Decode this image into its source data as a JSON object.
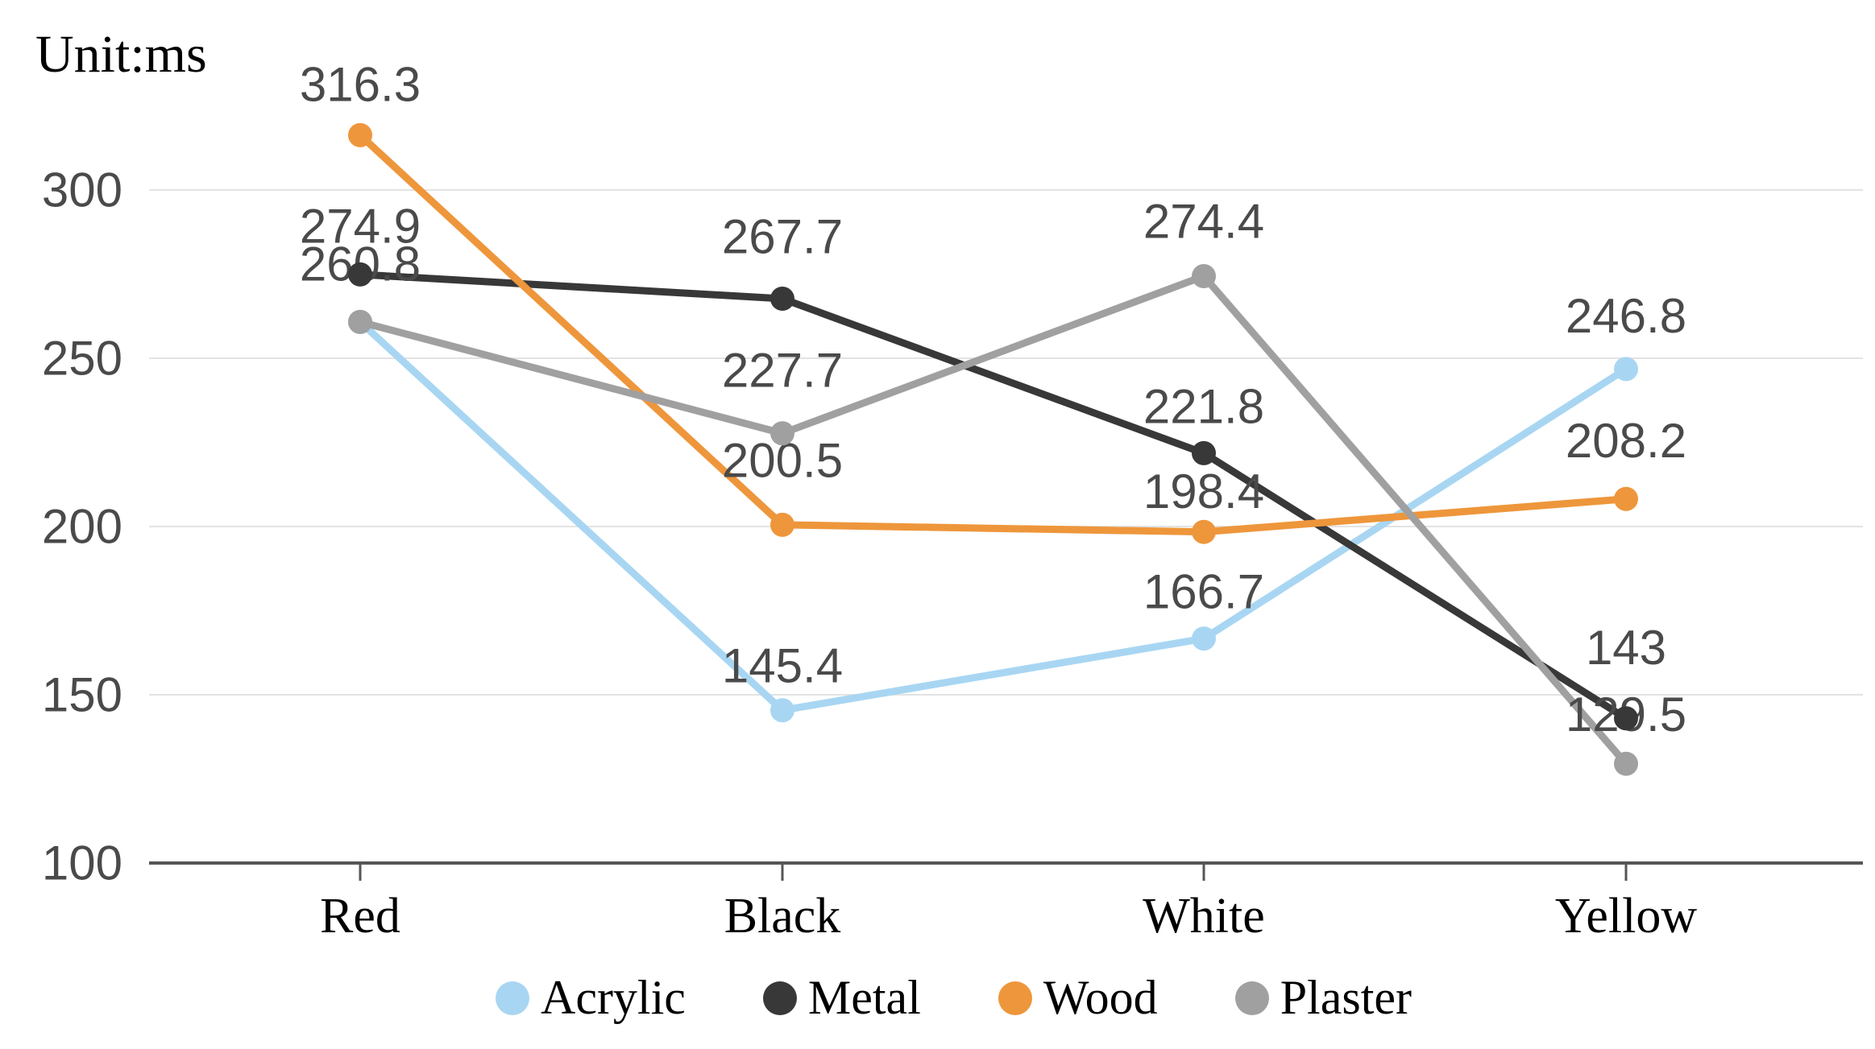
{
  "chart_data": {
    "type": "line",
    "unit_label": "Unit:ms",
    "categories": [
      "Red",
      "Black",
      "White",
      "Yellow"
    ],
    "y_ticks": [
      100,
      150,
      200,
      250,
      300
    ],
    "ylim": [
      100,
      300
    ],
    "grid": "horizontal-only",
    "legend_position": "bottom-center",
    "style": {
      "grid_color": "#e3e3e3",
      "axis_color": "#565656",
      "tick_label_color": "#4a4a4a",
      "data_label_color": "#4a4a4a",
      "category_label_color": "#000000",
      "background": "#ffffff"
    },
    "series": [
      {
        "name": "Acrylic",
        "color": "#a8d6f2",
        "values": [
          260.8,
          145.4,
          166.7,
          246.8
        ],
        "labels": [
          "",
          "145.4",
          "166.7",
          "246.8"
        ],
        "label_dy": [
          0,
          -55,
          -58,
          -66
        ]
      },
      {
        "name": "Metal",
        "color": "#383838",
        "values": [
          274.9,
          267.7,
          221.8,
          143
        ],
        "labels": [
          "274.9",
          "267.7",
          "221.8",
          "143"
        ],
        "label_dy": [
          -60,
          -77,
          -58,
          -88
        ]
      },
      {
        "name": "Wood",
        "color": "#ee963b",
        "values": [
          316.3,
          200.5,
          198.4,
          208.2
        ],
        "labels": [
          "316.3",
          "200.5",
          "198.4",
          "208.2"
        ],
        "label_dy": [
          -63,
          -80,
          -50,
          -72
        ]
      },
      {
        "name": "Plaster",
        "color": "#a0a0a0",
        "values": [
          260.8,
          227.7,
          274.4,
          129.5
        ],
        "labels": [
          "260.8",
          "227.7",
          "274.4",
          "129.5"
        ],
        "label_dy": [
          -72,
          -78,
          -68,
          -61
        ]
      }
    ]
  }
}
